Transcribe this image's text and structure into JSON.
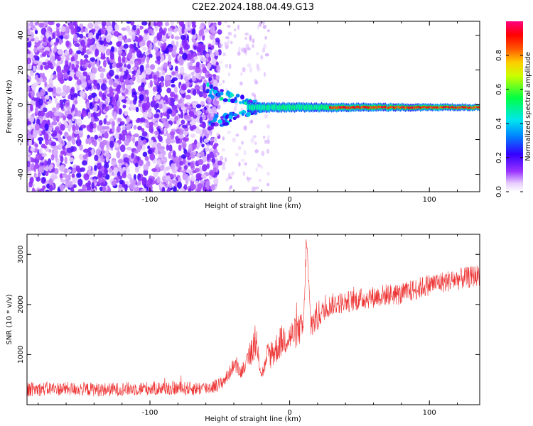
{
  "figure_title": "C2E2.2024.188.04.49.G13",
  "colors": {
    "snr_line": "#ee3333",
    "colormap": [
      "#ffffff",
      "#e6ccff",
      "#9933ff",
      "#3300ff",
      "#0088ff",
      "#00e5ee",
      "#00ff44",
      "#ccff00",
      "#ffcc00",
      "#ff5500",
      "#ff0000",
      "#ff0080"
    ]
  },
  "chart_data": [
    {
      "type": "heatmap",
      "title": "",
      "xlabel": "Height of straight line (km)",
      "ylabel": "Frequency (Hz)",
      "xlim": [
        -188,
        136
      ],
      "ylim": [
        -50,
        48
      ],
      "xticks": [
        -100,
        0,
        100
      ],
      "yticks": [
        -40,
        -20,
        0,
        20,
        40
      ],
      "colorbar": {
        "label": "Normalized spectral amplitude",
        "range": [
          0,
          1
        ],
        "ticks": [
          "0.0",
          "0.2",
          "0.4",
          "0.6",
          "0.8"
        ],
        "tick_values": [
          0,
          0.2,
          0.4,
          0.6,
          0.8
        ]
      },
      "features": {
        "noise_region_x": [
          -188,
          -60
        ],
        "signal_frequency_hz": -1.5,
        "signal_start_x": -60,
        "signal_peak_amplitude": 0.95
      }
    },
    {
      "type": "line",
      "title": "",
      "xlabel": "Height of straight line (km)",
      "ylabel": "SNR (10 * v/v)",
      "xlim": [
        -188,
        136
      ],
      "ylim": [
        0,
        3400
      ],
      "xticks": [
        -100,
        0,
        100
      ],
      "yticks": [
        1000,
        2000,
        3000
      ],
      "series": [
        {
          "x": [
            -188,
            -170,
            -150,
            -130,
            -110,
            -90,
            -70,
            -60,
            -50,
            -45,
            -40,
            -35,
            -30,
            -25,
            -20,
            -15,
            -10,
            -5,
            0,
            5,
            10,
            12,
            15,
            20,
            25,
            30,
            40,
            50,
            60,
            70,
            80,
            90,
            100,
            110,
            120,
            130,
            136
          ],
          "y": [
            300,
            320,
            310,
            300,
            320,
            330,
            320,
            330,
            400,
            550,
            800,
            650,
            900,
            1250,
            600,
            1000,
            1100,
            1300,
            1350,
            1450,
            1550,
            3350,
            1600,
            1750,
            1900,
            2000,
            2050,
            2100,
            2150,
            2200,
            2200,
            2300,
            2400,
            2450,
            2500,
            2550,
            2600
          ]
        }
      ]
    }
  ]
}
